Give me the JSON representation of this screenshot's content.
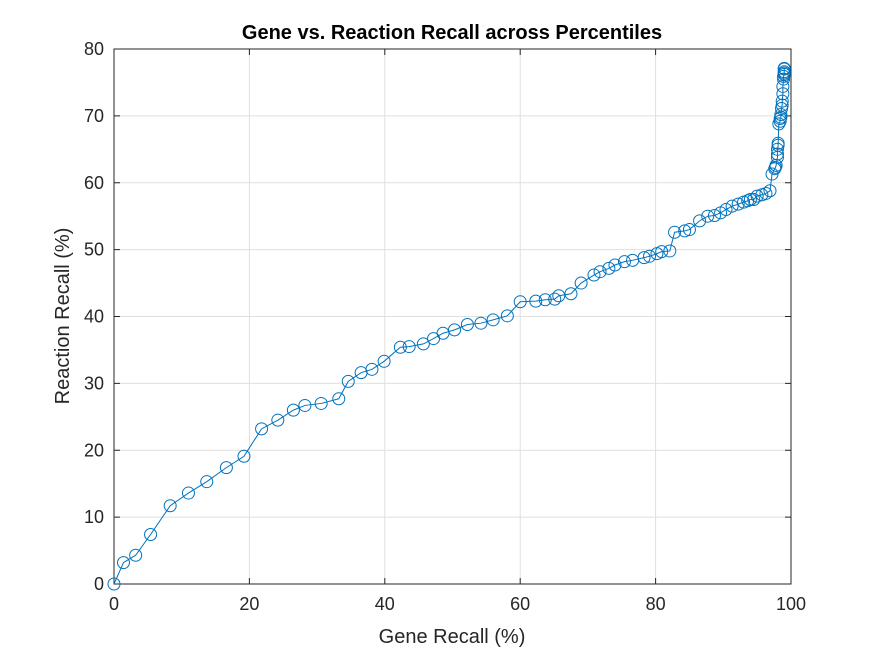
{
  "chart_data": {
    "type": "line",
    "title": "Gene vs. Reaction Recall across Percentiles",
    "xlabel": "Gene Recall (%)",
    "ylabel": "Reaction Recall (%)",
    "xlim": [
      0,
      100
    ],
    "ylim": [
      0,
      80
    ],
    "xticks": [
      0,
      20,
      40,
      60,
      80,
      100
    ],
    "yticks": [
      0,
      10,
      20,
      30,
      40,
      50,
      60,
      70,
      80
    ],
    "grid": true,
    "legend": "none",
    "marker": "circle",
    "series": [
      {
        "color": "#0072BD",
        "x": [
          0,
          1.4,
          3.2,
          5.4,
          8.3,
          11.0,
          13.7,
          16.6,
          19.2,
          21.8,
          24.2,
          26.5,
          28.2,
          30.6,
          33.2,
          34.6,
          36.5,
          38.1,
          39.9,
          42.3,
          43.6,
          45.7,
          47.2,
          48.6,
          50.3,
          52.2,
          54.2,
          56.0,
          58.1,
          60.0,
          62.3,
          63.7,
          65.1,
          65.7,
          67.5,
          69.0,
          70.9,
          71.8,
          73.1,
          74.0,
          75.4,
          76.6,
          78.3,
          79.1,
          80.2,
          80.9,
          82.1,
          82.8,
          84.3,
          85.0,
          86.5,
          87.7,
          88.7,
          89.6,
          90.4,
          91.3,
          92.2,
          93.0,
          93.6,
          94.0,
          94.5,
          95.0,
          95.7,
          96.3,
          96.9,
          97.2,
          97.6,
          97.7,
          97.8,
          98.0,
          98.0,
          98.0,
          98.1,
          98.1,
          98.2,
          98.4,
          98.4,
          98.5,
          98.5,
          98.6,
          98.7,
          98.7,
          98.8,
          98.8,
          98.9,
          98.9,
          99.0,
          99.0,
          99.0,
          99.0,
          99.0
        ],
        "y": [
          0,
          3.2,
          4.3,
          7.4,
          11.7,
          13.6,
          15.3,
          17.4,
          19.1,
          23.2,
          24.5,
          26.0,
          26.7,
          27.0,
          27.7,
          30.3,
          31.6,
          32.1,
          33.3,
          35.4,
          35.5,
          35.9,
          36.7,
          37.5,
          38.0,
          38.8,
          39.0,
          39.5,
          40.1,
          42.2,
          42.3,
          42.5,
          42.6,
          43.1,
          43.4,
          45.0,
          46.2,
          46.7,
          47.2,
          47.7,
          48.2,
          48.4,
          48.8,
          49.0,
          49.4,
          49.7,
          49.8,
          52.6,
          52.8,
          53.0,
          54.3,
          55.0,
          55.1,
          55.5,
          56.0,
          56.5,
          56.8,
          57.1,
          57.3,
          57.5,
          57.5,
          58.0,
          58.2,
          58.4,
          58.8,
          61.3,
          62.1,
          62.3,
          62.6,
          63.8,
          64.3,
          65.0,
          65.6,
          65.9,
          68.8,
          69.2,
          69.6,
          69.8,
          70.2,
          71.1,
          71.6,
          72.2,
          73.3,
          74.4,
          75.5,
          75.9,
          76.2,
          76.4,
          76.6,
          77.0,
          77.1
        ]
      }
    ]
  }
}
